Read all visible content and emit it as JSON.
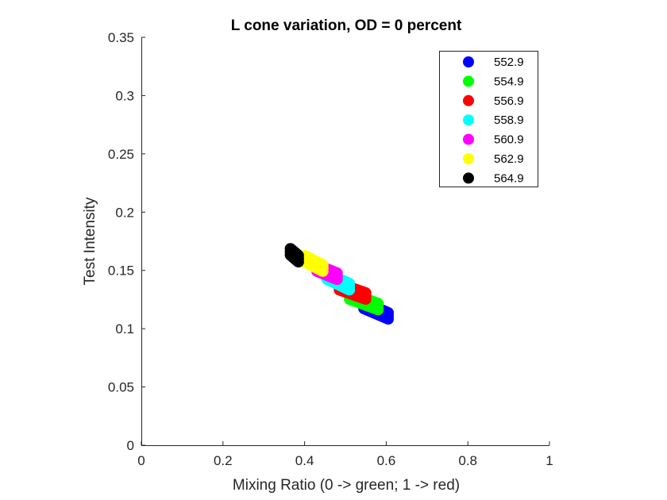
{
  "chart_data": {
    "type": "scatter",
    "title": "L cone variation, OD = 0 percent",
    "xlabel": "Mixing Ratio (0 -> green; 1 -> red)",
    "ylabel": "Test Intensity",
    "xlim": [
      0,
      1
    ],
    "ylim": [
      0,
      0.35
    ],
    "xticks": [
      "0",
      "0.2",
      "0.4",
      "0.6",
      "0.8",
      "1"
    ],
    "yticks": [
      "0",
      "0.05",
      "0.1",
      "0.15",
      "0.2",
      "0.25",
      "0.3",
      "0.35"
    ],
    "grid": false,
    "legend_position": "top-right",
    "series": [
      {
        "name": "552.9",
        "color": "#0000ff",
        "x_range": [
          0.545,
          0.605
        ],
        "y_range": [
          0.111,
          0.12
        ]
      },
      {
        "name": "554.9",
        "color": "#00ff00",
        "x_range": [
          0.51,
          0.58
        ],
        "y_range": [
          0.119,
          0.128
        ]
      },
      {
        "name": "556.9",
        "color": "#ff0000",
        "x_range": [
          0.485,
          0.55
        ],
        "y_range": [
          0.128,
          0.136
        ]
      },
      {
        "name": "558.9",
        "color": "#00ffff",
        "x_range": [
          0.455,
          0.51
        ],
        "y_range": [
          0.136,
          0.145
        ]
      },
      {
        "name": "560.9",
        "color": "#ff00ff",
        "x_range": [
          0.43,
          0.48
        ],
        "y_range": [
          0.145,
          0.152
        ]
      },
      {
        "name": "562.9",
        "color": "#ffff00",
        "x_range": [
          0.4,
          0.445
        ],
        "y_range": [
          0.152,
          0.16
        ]
      },
      {
        "name": "564.9",
        "color": "#000000",
        "x_range": [
          0.365,
          0.385
        ],
        "y_range": [
          0.16,
          0.166
        ]
      }
    ]
  }
}
